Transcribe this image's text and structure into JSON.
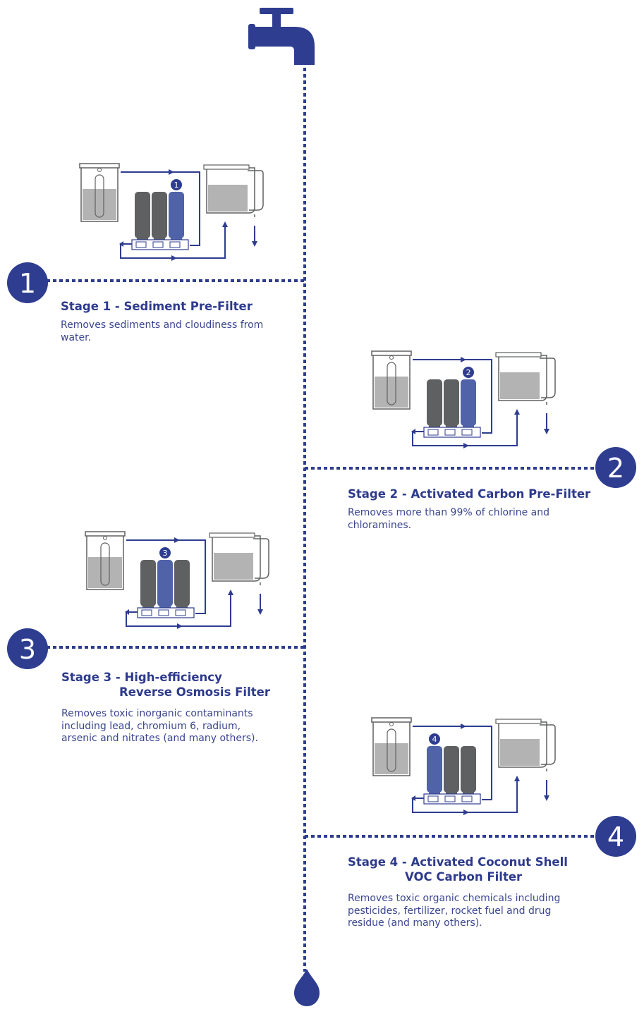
{
  "colors": {
    "primary": "#2e3d8f",
    "filter_grey": "#5f6062",
    "filter_blue": "#5063a8",
    "water_grey": "#b3b3b3"
  },
  "stages": [
    {
      "number": "1",
      "highlight_index": 2,
      "title": "Stage 1 - Sediment Pre-Filter",
      "title_line2": "",
      "description": "Removes sediments and cloudiness from water."
    },
    {
      "number": "2",
      "highlight_index": 2,
      "title": "Stage 2 - Activated Carbon Pre-Filter",
      "title_line2": "",
      "description": "Removes more than 99% of chlorine and chloramines."
    },
    {
      "number": "3",
      "highlight_index": 1,
      "title": "Stage 3 - High-efficiency",
      "title_line2": "Reverse Osmosis Filter",
      "description": "Removes toxic inorganic contaminants including lead, chromium 6, radium, arsenic and nitrates (and many others)."
    },
    {
      "number": "4",
      "highlight_index": 0,
      "title": "Stage 4 - Activated Coconut Shell",
      "title_line2": "VOC Carbon Filter",
      "description": "Removes toxic organic chemicals including pesticides, fertilizer, rocket fuel and drug residue (and many others)."
    }
  ],
  "icons": {
    "top": "faucet-icon",
    "bottom": "water-drop-icon"
  }
}
